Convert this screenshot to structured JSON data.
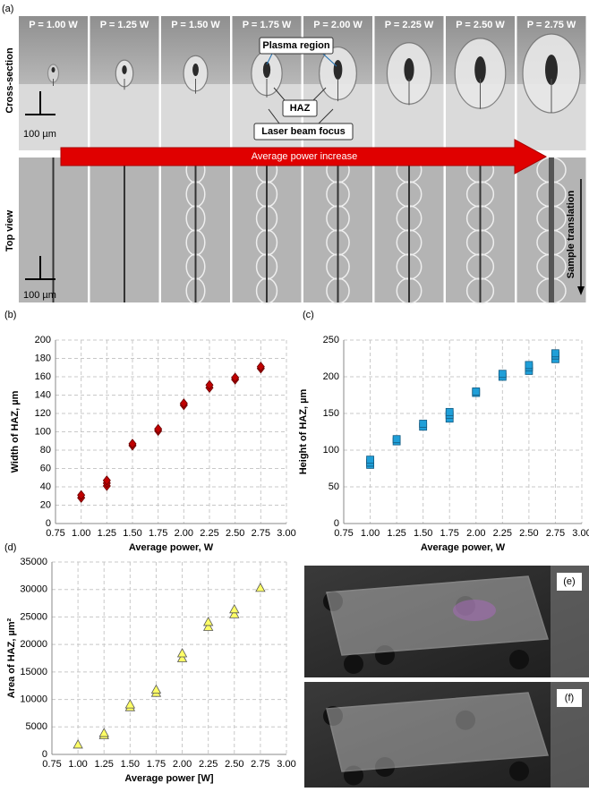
{
  "figure": {
    "panel_labels": [
      "(a)",
      "(b)",
      "(c)",
      "(d)",
      "(e)",
      "(f)"
    ],
    "power_labels": [
      "P = 1.00 W",
      "P = 1.25 W",
      "P = 1.50 W",
      "P = 1.75 W",
      "P = 2.00 W",
      "P = 2.25 W",
      "P = 2.50 W",
      "P = 2.75 W"
    ],
    "row_labels": [
      "Cross-section",
      "Top view"
    ],
    "arrow_label": "Average power increase",
    "callouts": {
      "plasma": "Plasma region",
      "haz": "HAZ",
      "focus": "Laser beam focus"
    },
    "scale_bar": "100 µm",
    "sample_translation": "Sample translation"
  },
  "chart_data": [
    {
      "type": "scatter",
      "marker": "diamond",
      "color": "#c00000",
      "grid": true,
      "x_label": "Average power, W",
      "y_label": "Width of HAZ, µm",
      "x": [
        1.0,
        1.0,
        1.25,
        1.25,
        1.25,
        1.5,
        1.5,
        1.75,
        1.75,
        2.0,
        2.0,
        2.25,
        2.25,
        2.5,
        2.5,
        2.75,
        2.75
      ],
      "values": [
        28,
        31,
        41,
        44,
        47,
        85,
        87,
        101,
        103,
        129,
        131,
        148,
        151,
        157,
        159,
        169,
        171
      ],
      "xlim": [
        0.75,
        3.0
      ],
      "xticks": [
        0.75,
        {
          "value": 1.0,
          "label": "1.00"
        },
        1.25,
        {
          "value": 1.5,
          "label": "1.50"
        },
        1.75,
        {
          "value": 2.0,
          "label": "2.00"
        },
        2.25,
        {
          "value": 2.5,
          "label": "2.50"
        },
        2.75,
        {
          "value": 3.0,
          "label": "3.00"
        }
      ],
      "ylim": [
        0,
        200
      ],
      "yticks": [
        0,
        20,
        40,
        60,
        80,
        100,
        120,
        140,
        160,
        180,
        200
      ]
    },
    {
      "type": "scatter",
      "marker": "square",
      "color": "#1f9fd8",
      "grid": true,
      "x_label": "Average power, W",
      "y_label": "Height of HAZ, µm",
      "x": [
        1.0,
        1.0,
        1.0,
        1.25,
        1.25,
        1.5,
        1.5,
        1.75,
        1.75,
        1.75,
        2.0,
        2.0,
        2.25,
        2.25,
        2.5,
        2.5,
        2.5,
        2.75,
        2.75,
        2.75
      ],
      "values": [
        80,
        83,
        87,
        112,
        115,
        132,
        136,
        143,
        148,
        152,
        178,
        180,
        200,
        204,
        208,
        213,
        216,
        224,
        229,
        232
      ],
      "xlim": [
        0.75,
        3.0
      ],
      "xticks": [
        0.75,
        {
          "value": 1.0,
          "label": "1.00"
        },
        1.25,
        {
          "value": 1.5,
          "label": "1.50"
        },
        1.75,
        {
          "value": 2.0,
          "label": "2.00"
        },
        2.25,
        {
          "value": 2.5,
          "label": "2.50"
        },
        2.75,
        {
          "value": 3.0,
          "label": "3.00"
        }
      ],
      "ylim": [
        0,
        250
      ],
      "yticks": [
        0,
        50,
        100,
        150,
        200,
        250
      ]
    },
    {
      "type": "scatter",
      "marker": "triangle",
      "color": "#ffff66",
      "grid": true,
      "x_label": "Average power [W]",
      "y_label": "Area of HAZ, µm²",
      "x": [
        1.0,
        1.25,
        1.25,
        1.5,
        1.5,
        1.75,
        1.75,
        2.0,
        2.0,
        2.25,
        2.25,
        2.5,
        2.5,
        2.75
      ],
      "values": [
        1800,
        3500,
        3900,
        8600,
        9100,
        11200,
        11800,
        17500,
        18400,
        23200,
        24100,
        25500,
        26400,
        30300
      ],
      "xlim": [
        0.75,
        3.0
      ],
      "xticks": [
        0.75,
        {
          "value": 1.0,
          "label": "1.00"
        },
        1.25,
        {
          "value": 1.5,
          "label": "1.50"
        },
        1.75,
        {
          "value": 2.0,
          "label": "2.00"
        },
        2.25,
        {
          "value": 2.5,
          "label": "2.50"
        },
        2.75,
        {
          "value": 3.0,
          "label": "3.00"
        }
      ],
      "ylim": [
        0,
        35000
      ],
      "yticks": [
        0,
        5000,
        10000,
        15000,
        20000,
        25000,
        30000,
        35000
      ]
    }
  ]
}
